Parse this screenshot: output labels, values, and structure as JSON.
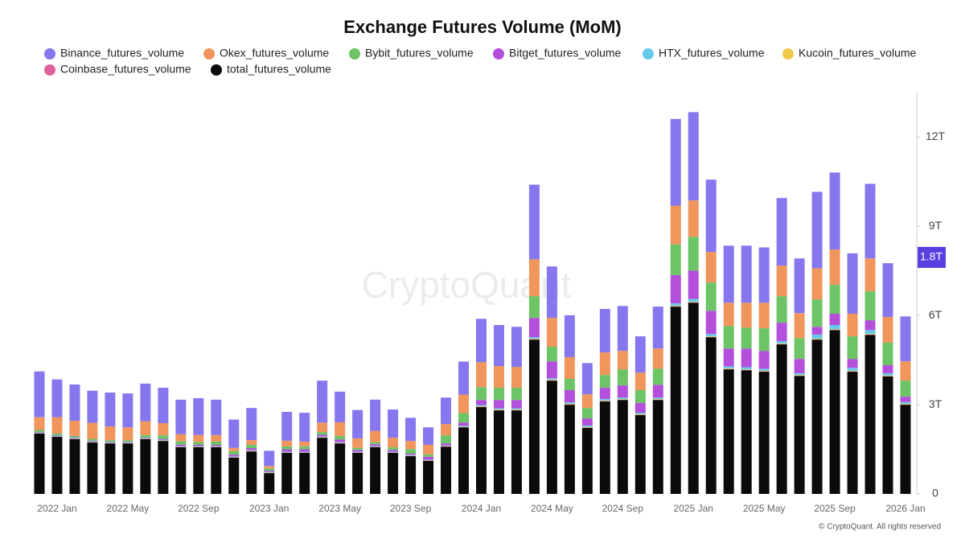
{
  "chart_data": {
    "type": "stacked_bar",
    "title": "Exchange Futures Volume (MoM)",
    "watermark": "CryptoQuant",
    "footer": "© CryptoQuant. All rights reserved",
    "current_value_label": "1.8T",
    "categories": [
      null,
      "2022 Jan",
      null,
      null,
      null,
      "2022 May",
      null,
      null,
      null,
      "2022 Sep",
      null,
      null,
      null,
      "2023 Jan",
      null,
      null,
      null,
      "2023 May",
      null,
      null,
      null,
      "2023 Sep",
      null,
      null,
      null,
      "2024 Jan",
      null,
      null,
      null,
      "2024 May",
      null,
      null,
      null,
      "2024 Sep",
      null,
      null,
      null,
      "2025 Jan",
      null,
      null,
      null,
      "2025 May",
      null,
      null,
      null,
      "2025 Sep",
      null,
      null,
      null,
      "2026 Jan"
    ],
    "ylim": [
      0,
      13.5
    ],
    "yticks": [
      0,
      {
        "value": 3,
        "label": "3T"
      },
      {
        "value": 6,
        "label": "6T"
      },
      {
        "value": 9,
        "label": "9T"
      },
      {
        "value": 12,
        "label": "12T"
      }
    ],
    "grid": false,
    "legend": "top",
    "series": [
      {
        "name": "Binance_futures_volume",
        "color": "#8677ee",
        "values": [
          1.54,
          1.27,
          1.22,
          1.08,
          1.14,
          1.14,
          1.27,
          1.19,
          1.16,
          1.24,
          1.19,
          0.95,
          1.08,
          0.51,
          0.97,
          0.97,
          1.41,
          1.03,
          0.95,
          1.05,
          0.95,
          0.78,
          0.59,
          0.89,
          1.11,
          1.46,
          1.38,
          1.35,
          2.51,
          1.73,
          1.41,
          1.05,
          1.46,
          1.51,
          1.22,
          1.41,
          2.92,
          2.97,
          2.43,
          1.92,
          1.92,
          1.86,
          2.27,
          1.84,
          2.57,
          2.59,
          2.03,
          2.51,
          1.81,
          1.51
        ]
      },
      {
        "name": "Okex_futures_volume",
        "color": "#f0955c",
        "values": [
          0.43,
          0.55,
          0.51,
          0.54,
          0.46,
          0.43,
          0.46,
          0.41,
          0.24,
          0.24,
          0.22,
          0.11,
          0.16,
          0.08,
          0.19,
          0.16,
          0.32,
          0.46,
          0.32,
          0.38,
          0.32,
          0.27,
          0.32,
          0.38,
          0.62,
          0.84,
          0.73,
          0.7,
          1.24,
          0.97,
          0.73,
          0.46,
          0.76,
          0.62,
          0.59,
          0.68,
          1.3,
          1.22,
          1.03,
          0.78,
          0.84,
          0.86,
          1.03,
          0.84,
          1.05,
          1.19,
          0.76,
          1.11,
          0.86,
          0.65
        ]
      },
      {
        "name": "Bybit_futures_volume",
        "color": "#6cc467",
        "values": [
          0.06,
          0.05,
          0.05,
          0.06,
          0.05,
          0.05,
          0.08,
          0.12,
          0.11,
          0.09,
          0.11,
          0.12,
          0.11,
          0.08,
          0.1,
          0.1,
          0.09,
          0.12,
          0.07,
          0.07,
          0.09,
          0.16,
          0.08,
          0.27,
          0.32,
          0.43,
          0.41,
          0.41,
          0.73,
          0.49,
          0.38,
          0.35,
          0.43,
          0.54,
          0.43,
          0.54,
          1.03,
          1.14,
          0.95,
          0.76,
          0.7,
          0.76,
          0.89,
          0.7,
          0.92,
          0.97,
          0.76,
          0.97,
          0.76,
          0.54
        ]
      },
      {
        "name": "Bitget_futures_volume",
        "color": "#b44fdc",
        "values": [
          0.02,
          0.02,
          0.02,
          0.02,
          0.02,
          0.02,
          0.02,
          0.03,
          0.05,
          0.04,
          0.04,
          0.06,
          0.07,
          0.04,
          0.08,
          0.08,
          0.06,
          0.09,
          0.06,
          0.06,
          0.06,
          0.04,
          0.1,
          0.07,
          0.11,
          0.17,
          0.28,
          0.28,
          0.65,
          0.57,
          0.41,
          0.24,
          0.38,
          0.41,
          0.33,
          0.43,
          0.95,
          0.95,
          0.78,
          0.6,
          0.63,
          0.6,
          0.62,
          0.48,
          0.26,
          0.38,
          0.3,
          0.33,
          0.27,
          0.18
        ]
      },
      {
        "name": "HTX_futures_volume",
        "color": "#66c9e9",
        "values": [
          0.02,
          0.02,
          0.02,
          0.02,
          0.02,
          0.02,
          0.02,
          0.02,
          0.02,
          0.02,
          0.02,
          0.02,
          0.02,
          0.02,
          0.02,
          0.02,
          0.02,
          0.02,
          0.02,
          0.02,
          0.02,
          0.02,
          0.02,
          0.02,
          0.03,
          0.04,
          0.04,
          0.04,
          0.05,
          0.05,
          0.05,
          0.05,
          0.05,
          0.05,
          0.05,
          0.05,
          0.08,
          0.1,
          0.08,
          0.07,
          0.07,
          0.07,
          0.08,
          0.06,
          0.14,
          0.14,
          0.1,
          0.13,
          0.08,
          0.06
        ]
      },
      {
        "name": "Kucoin_futures_volume",
        "color": "#f0c94c",
        "values": [
          0.01,
          0.01,
          0.01,
          0.01,
          0.01,
          0.01,
          0.01,
          0.01,
          0.01,
          0.01,
          0.01,
          0.01,
          0.01,
          0.01,
          0.01,
          0.01,
          0.01,
          0.01,
          0.01,
          0.01,
          0.01,
          0.01,
          0.01,
          0.01,
          0.01,
          0.02,
          0.02,
          0.02,
          0.02,
          0.02,
          0.02,
          0.02,
          0.02,
          0.02,
          0.02,
          0.02,
          0.02,
          0.02,
          0.02,
          0.02,
          0.02,
          0.02,
          0.02,
          0.02,
          0.02,
          0.02,
          0.02,
          0.02,
          0.02,
          0.02
        ]
      },
      {
        "name": "Coinbase_futures_volume",
        "color": "#e0629c",
        "values": [
          0.01,
          0.01,
          0.01,
          0.01,
          0.01,
          0.01,
          0.01,
          0.01,
          0.01,
          0.01,
          0.01,
          0.01,
          0.01,
          0.01,
          0.01,
          0.01,
          0.01,
          0.01,
          0.01,
          0.01,
          0.01,
          0.01,
          0.01,
          0.01,
          0.01,
          0.01,
          0.01,
          0.01,
          0.01,
          0.01,
          0.01,
          0.01,
          0.01,
          0.01,
          0.01,
          0.01,
          0.01,
          0.01,
          0.01,
          0.01,
          0.01,
          0.01,
          0.01,
          0.01,
          0.01,
          0.01,
          0.01,
          0.01,
          0.01,
          0.01
        ]
      },
      {
        "name": "total_futures_volume",
        "color": "#0b0b0b",
        "values": [
          2.03,
          1.92,
          1.84,
          1.73,
          1.7,
          1.7,
          1.84,
          1.78,
          1.57,
          1.57,
          1.57,
          1.22,
          1.43,
          0.7,
          1.38,
          1.38,
          1.89,
          1.7,
          1.38,
          1.57,
          1.38,
          1.27,
          1.11,
          1.59,
          2.24,
          2.92,
          2.81,
          2.81,
          5.19,
          3.81,
          3.0,
          2.22,
          3.11,
          3.16,
          2.65,
          3.16,
          6.3,
          6.43,
          5.27,
          4.19,
          4.16,
          4.11,
          5.03,
          3.97,
          5.19,
          5.51,
          4.11,
          5.35,
          3.95,
          3.0
        ]
      }
    ]
  }
}
